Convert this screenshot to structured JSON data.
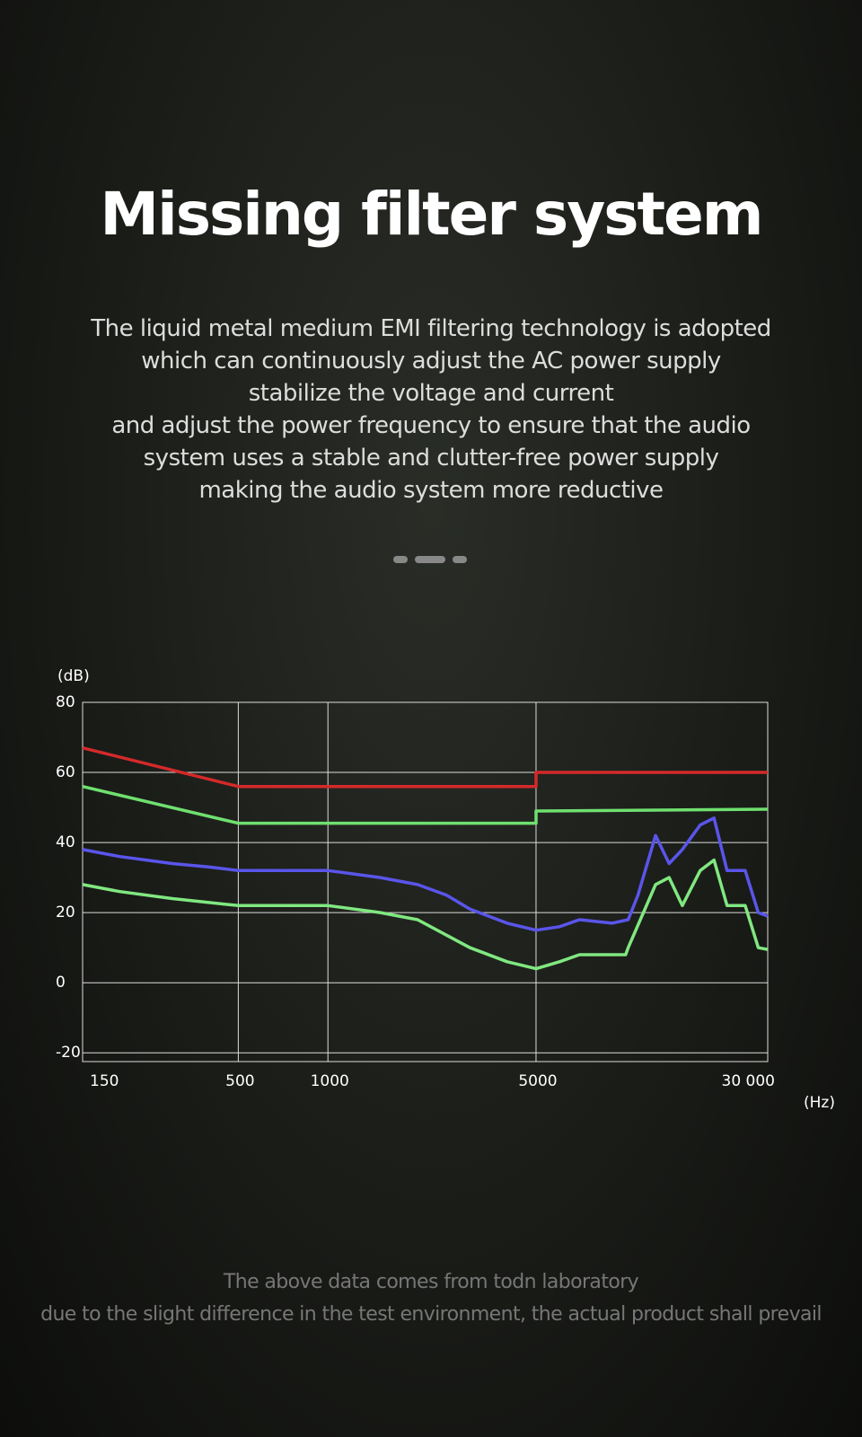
{
  "header": {
    "title": "Missing filter system",
    "description": [
      "The liquid metal medium EMI filtering technology is adopted",
      "which can continuously adjust the AC power supply",
      "stabilize the voltage and current",
      "and adjust the power frequency to ensure that the audio",
      "system uses a stable and clutter-free power supply",
      "making the audio system more reductive"
    ]
  },
  "chart_data": {
    "type": "line",
    "ylabel": "(dB)",
    "xlabel": "(Hz)",
    "xscale": "log",
    "grid": true,
    "xlim": [
      150,
      30000
    ],
    "xticks": [
      150,
      500,
      1000,
      5000,
      {
        "value": 30000,
        "label": "30 000"
      }
    ],
    "ylim": [
      -22.5,
      80
    ],
    "yticks": [
      80,
      60,
      40,
      20,
      0,
      -20
    ],
    "series": [
      {
        "color": "#d42a2a",
        "x": [
          150,
          500,
          5000,
          5000,
          30000
        ],
        "values": [
          67,
          56,
          56,
          60,
          60
        ]
      },
      {
        "color": "#6fe06f",
        "x": [
          150,
          500,
          5000,
          5000,
          30000
        ],
        "values": [
          56,
          45.5,
          45.5,
          49,
          49.5
        ]
      },
      {
        "color": "#5a55ea",
        "x": [
          150,
          200,
          300,
          400,
          500,
          700,
          1000,
          1500,
          2000,
          2500,
          3000,
          4000,
          5000,
          6000,
          7000,
          9000,
          10200,
          11000,
          12600,
          14000,
          15500,
          17800,
          19800,
          21900,
          25200,
          27900,
          30000
        ],
        "values": [
          38,
          36,
          34,
          33,
          32,
          32,
          32,
          30,
          28,
          25,
          21,
          17,
          15,
          16,
          18,
          17,
          18,
          25,
          42,
          34,
          38,
          45,
          47,
          32,
          32,
          20,
          19
        ]
      },
      {
        "color": "#80e880",
        "x": [
          150,
          200,
          300,
          500,
          1000,
          1500,
          2000,
          3000,
          4000,
          5000,
          6000,
          7000,
          10000,
          10200,
          12600,
          14000,
          15500,
          17800,
          19800,
          21900,
          25200,
          27900,
          30000
        ],
        "values": [
          28,
          26,
          24,
          22,
          22,
          20,
          18,
          10,
          6,
          4,
          6,
          8,
          8,
          10,
          28,
          30,
          22,
          32,
          35,
          22,
          22,
          10,
          9.5
        ]
      }
    ]
  },
  "footer": [
    "The above data comes from todn laboratory",
    "due to the slight difference in the test environment, the actual product shall prevail"
  ]
}
